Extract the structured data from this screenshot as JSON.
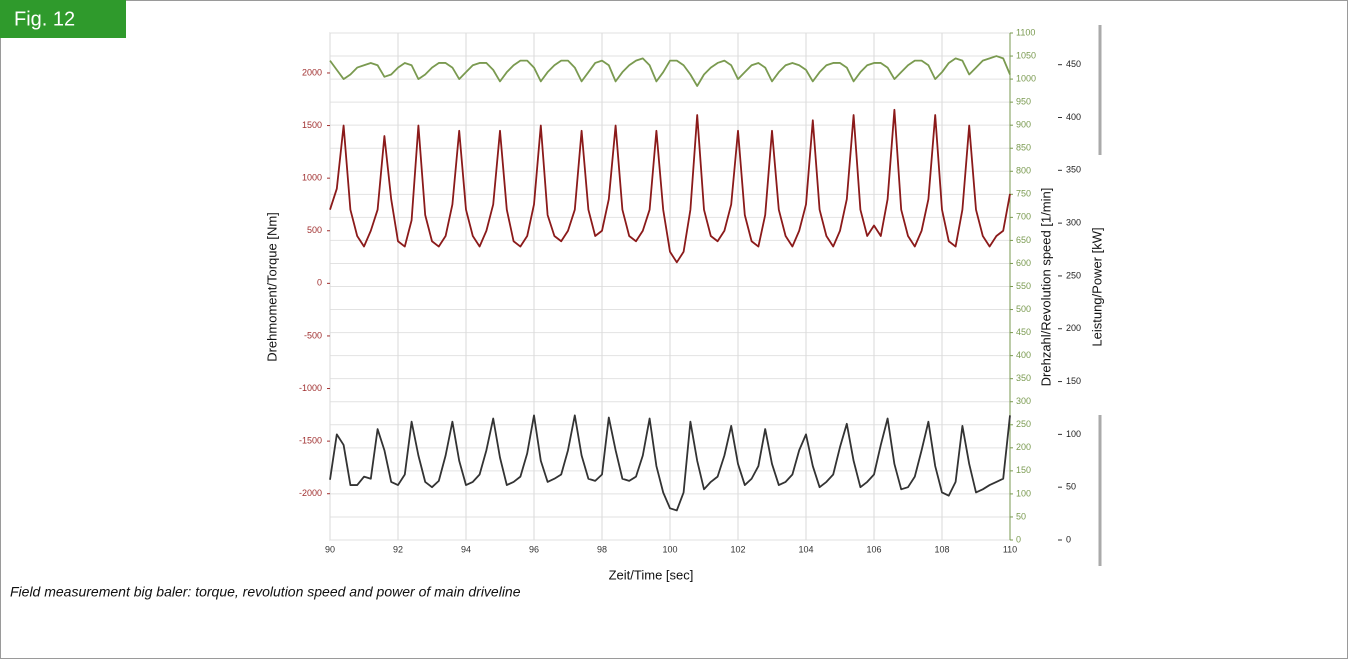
{
  "figure_label": "Fig. 12",
  "caption": "Field measurement big baler: torque, revolution speed and power of main driveline",
  "chart_data": {
    "type": "line",
    "xlabel": "Zeit/Time [sec]",
    "ylabel": "Drehmoment/Torque [Nm]",
    "y2label": "Drehzahl/Revolution speed [1/min]",
    "y3label": "Leistung/Power [kW]",
    "x": [
      90,
      90.2,
      90.4,
      90.6,
      90.8,
      91,
      91.2,
      91.4,
      91.6,
      91.8,
      92,
      92.2,
      92.4,
      92.6,
      92.8,
      93,
      93.2,
      93.4,
      93.6,
      93.8,
      94,
      94.2,
      94.4,
      94.6,
      94.8,
      95,
      95.2,
      95.4,
      95.6,
      95.8,
      96,
      96.2,
      96.4,
      96.6,
      96.8,
      97,
      97.2,
      97.4,
      97.6,
      97.8,
      98,
      98.2,
      98.4,
      98.6,
      98.8,
      99,
      99.2,
      99.4,
      99.6,
      99.8,
      100,
      100.2,
      100.4,
      100.6,
      100.8,
      101,
      101.2,
      101.4,
      101.6,
      101.8,
      102,
      102.2,
      102.4,
      102.6,
      102.8,
      103,
      103.2,
      103.4,
      103.6,
      103.8,
      104,
      104.2,
      104.4,
      104.6,
      104.8,
      105,
      105.2,
      105.4,
      105.6,
      105.8,
      106,
      106.2,
      106.4,
      106.6,
      106.8,
      107,
      107.2,
      107.4,
      107.6,
      107.8,
      108,
      108.2,
      108.4,
      108.6,
      108.8,
      109,
      109.2,
      109.4,
      109.6,
      109.8,
      110
    ],
    "xlim": [
      90,
      110
    ],
    "xticks": [
      90,
      92,
      94,
      96,
      98,
      100,
      102,
      104,
      106,
      108,
      110
    ],
    "ylim": [
      -2440,
      2380
    ],
    "yticks": [
      -2000,
      -1500,
      -1000,
      -500,
      0,
      500,
      1000,
      1500,
      2000
    ],
    "y2lim": [
      0,
      1100
    ],
    "y2ticks": [
      0,
      50,
      100,
      150,
      200,
      250,
      300,
      350,
      400,
      450,
      500,
      550,
      600,
      650,
      700,
      750,
      800,
      850,
      900,
      950,
      1000,
      1050,
      1100
    ],
    "y3lim": [
      0,
      480
    ],
    "y3ticks": [
      0,
      50,
      100,
      150,
      200,
      250,
      300,
      350,
      400,
      450
    ],
    "grid": true,
    "series": [
      {
        "name": "Torque",
        "color": "#8b1a1a",
        "axis": "y",
        "values": [
          700,
          900,
          1500,
          700,
          450,
          350,
          500,
          700,
          1400,
          800,
          400,
          350,
          600,
          1500,
          650,
          400,
          350,
          450,
          750,
          1450,
          700,
          450,
          350,
          500,
          750,
          1450,
          700,
          400,
          350,
          450,
          750,
          1500,
          650,
          450,
          400,
          500,
          700,
          1450,
          700,
          450,
          500,
          800,
          1500,
          700,
          450,
          400,
          500,
          700,
          1450,
          700,
          300,
          200,
          300,
          700,
          1600,
          700,
          450,
          400,
          500,
          750,
          1450,
          650,
          400,
          350,
          650,
          1450,
          700,
          450,
          350,
          500,
          750,
          1550,
          700,
          450,
          350,
          500,
          800,
          1600,
          700,
          450,
          550,
          450,
          800,
          1650,
          700,
          450,
          350,
          500,
          800,
          1600,
          700,
          400,
          350,
          700,
          1500,
          700,
          450,
          350,
          450,
          500,
          850
        ]
      },
      {
        "name": "Revolution speed",
        "color": "#7a9a50",
        "axis": "y2",
        "values": [
          1040,
          1020,
          1000,
          1010,
          1025,
          1030,
          1035,
          1030,
          1005,
          1010,
          1025,
          1035,
          1030,
          1000,
          1010,
          1025,
          1035,
          1035,
          1025,
          1000,
          1015,
          1030,
          1035,
          1035,
          1020,
          995,
          1015,
          1030,
          1040,
          1040,
          1025,
          995,
          1015,
          1030,
          1040,
          1040,
          1025,
          995,
          1015,
          1035,
          1040,
          1030,
          995,
          1015,
          1030,
          1040,
          1045,
          1030,
          995,
          1015,
          1040,
          1040,
          1030,
          1010,
          985,
          1010,
          1025,
          1035,
          1040,
          1030,
          1000,
          1015,
          1030,
          1035,
          1025,
          995,
          1015,
          1030,
          1035,
          1030,
          1020,
          995,
          1015,
          1030,
          1035,
          1035,
          1025,
          995,
          1015,
          1030,
          1035,
          1035,
          1025,
          1000,
          1015,
          1030,
          1040,
          1040,
          1030,
          1000,
          1015,
          1035,
          1045,
          1040,
          1010,
          1025,
          1040,
          1045,
          1050,
          1045,
          1010
        ]
      },
      {
        "name": "Power",
        "color": "#333333",
        "axis": "y3",
        "values": [
          57,
          100,
          90,
          52,
          52,
          60,
          58,
          105,
          85,
          55,
          52,
          62,
          112,
          80,
          55,
          50,
          56,
          80,
          112,
          75,
          52,
          55,
          62,
          85,
          115,
          78,
          52,
          55,
          60,
          82,
          118,
          75,
          55,
          58,
          62,
          85,
          118,
          80,
          58,
          56,
          62,
          116,
          85,
          58,
          56,
          60,
          80,
          115,
          70,
          45,
          30,
          28,
          45,
          112,
          75,
          48,
          55,
          60,
          80,
          108,
          72,
          52,
          58,
          70,
          105,
          72,
          52,
          55,
          62,
          85,
          100,
          70,
          50,
          55,
          62,
          88,
          110,
          75,
          50,
          55,
          62,
          90,
          115,
          72,
          48,
          50,
          60,
          85,
          112,
          70,
          45,
          42,
          55,
          108,
          72,
          45,
          48,
          52,
          55,
          58,
          118
        ]
      }
    ]
  }
}
